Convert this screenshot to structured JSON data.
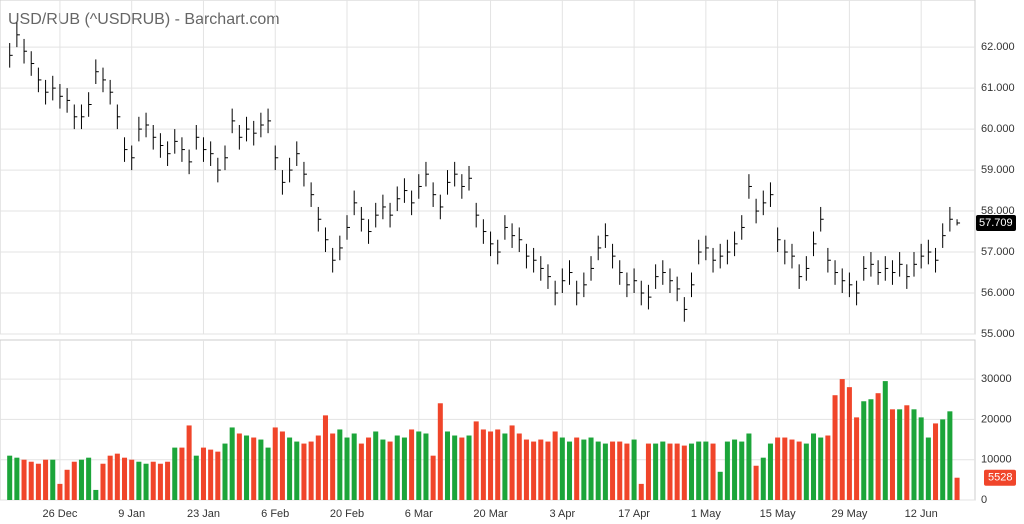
{
  "chart_data": {
    "type": "ohlc_volume",
    "title": "USD/RUB (^USDRUB) - Barchart.com",
    "grid": true,
    "up_color": "#1ca53a",
    "down_color": "#f0452a",
    "price_color": "#000000",
    "xlim": [
      -1.35,
      134.5
    ],
    "xticks": [
      {
        "value": 7,
        "label": "26 Dec"
      },
      {
        "value": 17,
        "label": "9 Jan"
      },
      {
        "value": 27,
        "label": "23 Jan"
      },
      {
        "value": 37,
        "label": "6 Feb"
      },
      {
        "value": 47,
        "label": "20 Feb"
      },
      {
        "value": 57,
        "label": "6 Mar"
      },
      {
        "value": 67,
        "label": "20 Mar"
      },
      {
        "value": 77,
        "label": "3 Apr"
      },
      {
        "value": 87,
        "label": "17 Apr"
      },
      {
        "value": 97,
        "label": "1 May"
      },
      {
        "value": 107,
        "label": "15 May"
      },
      {
        "value": 117,
        "label": "29 May"
      },
      {
        "value": 127,
        "label": "12 Jun"
      }
    ],
    "ylim": [
      55,
      63.15
    ],
    "yticks": [
      {
        "value": 55,
        "label": "55.000"
      },
      {
        "value": 56,
        "label": "56.000"
      },
      {
        "value": 57,
        "label": "57.000"
      },
      {
        "value": 58,
        "label": "58.000"
      },
      {
        "value": 59,
        "label": "59.000"
      },
      {
        "value": 60,
        "label": "60.000"
      },
      {
        "value": 61,
        "label": "61.000"
      },
      {
        "value": 62,
        "label": "62.000"
      }
    ],
    "y2lim": [
      0,
      39700
    ],
    "y2ticks": [
      0,
      10000,
      20000,
      30000
    ],
    "high": [
      62.1,
      62.6,
      62.2,
      61.9,
      61.5,
      61.2,
      61.3,
      61.1,
      61.0,
      60.6,
      60.6,
      60.9,
      61.7,
      61.5,
      61.2,
      60.6,
      59.8,
      59.6,
      60.3,
      60.4,
      60.1,
      59.9,
      59.7,
      60.0,
      59.8,
      59.5,
      60.1,
      59.8,
      59.7,
      59.3,
      59.6,
      60.5,
      60.1,
      60.3,
      60.2,
      60.4,
      60.5,
      59.6,
      59.0,
      59.3,
      59.7,
      59.2,
      58.7,
      58.1,
      57.6,
      57.1,
      57.4,
      57.9,
      58.5,
      58.1,
      57.8,
      58.2,
      58.4,
      58.2,
      58.6,
      58.8,
      58.5,
      58.9,
      59.2,
      58.7,
      58.4,
      59.0,
      59.2,
      58.9,
      59.1,
      58.2,
      57.8,
      57.5,
      57.3,
      57.9,
      57.7,
      57.6,
      57.2,
      57.1,
      56.9,
      56.7,
      56.3,
      56.6,
      56.8,
      56.3,
      56.5,
      56.9,
      57.4,
      57.7,
      57.2,
      56.8,
      56.5,
      56.6,
      56.3,
      56.2,
      56.7,
      56.8,
      56.6,
      56.4,
      55.9,
      56.5,
      57.3,
      57.4,
      57.1,
      57.2,
      57.3,
      57.5,
      57.9,
      58.9,
      58.3,
      58.5,
      58.7,
      57.6,
      57.3,
      57.2,
      56.7,
      56.9,
      57.5,
      58.1,
      57.1,
      56.8,
      56.6,
      56.5,
      56.3,
      56.9,
      57.0,
      56.8,
      56.9,
      56.8,
      57.0,
      56.7,
      57.0,
      57.2,
      57.3,
      57.1,
      57.7,
      58.1,
      57.8
    ],
    "low": [
      61.5,
      62.0,
      61.6,
      61.3,
      60.9,
      60.6,
      60.7,
      60.5,
      60.4,
      60.0,
      60.0,
      60.3,
      61.1,
      60.9,
      60.6,
      60.0,
      59.2,
      59.0,
      59.7,
      59.8,
      59.5,
      59.3,
      59.1,
      59.4,
      59.2,
      58.9,
      59.5,
      59.2,
      59.1,
      58.7,
      59.0,
      59.9,
      59.5,
      59.7,
      59.6,
      59.8,
      59.9,
      59.0,
      58.4,
      58.7,
      59.1,
      58.6,
      58.1,
      57.5,
      57.0,
      56.5,
      56.8,
      57.3,
      57.9,
      57.5,
      57.2,
      57.6,
      57.8,
      57.6,
      58.0,
      58.2,
      57.9,
      58.3,
      58.6,
      58.1,
      57.8,
      58.4,
      58.6,
      58.3,
      58.5,
      57.6,
      57.2,
      56.9,
      56.7,
      57.3,
      57.1,
      57.0,
      56.6,
      56.5,
      56.3,
      56.1,
      55.7,
      56.0,
      56.2,
      55.7,
      55.9,
      56.3,
      56.8,
      57.1,
      56.6,
      56.2,
      55.9,
      56.0,
      55.7,
      55.6,
      56.1,
      56.2,
      56.0,
      55.8,
      55.3,
      55.9,
      56.7,
      56.8,
      56.5,
      56.6,
      56.7,
      56.9,
      57.3,
      58.3,
      57.7,
      57.9,
      58.1,
      57.0,
      56.7,
      56.6,
      56.1,
      56.3,
      56.9,
      57.5,
      56.5,
      56.2,
      56.0,
      55.9,
      55.7,
      56.3,
      56.4,
      56.2,
      56.3,
      56.2,
      56.4,
      56.1,
      56.4,
      56.6,
      56.7,
      56.5,
      57.1,
      57.5,
      57.65
    ],
    "close": [
      61.8,
      62.3,
      61.9,
      61.6,
      61.2,
      60.9,
      61.0,
      60.8,
      60.7,
      60.3,
      60.3,
      60.6,
      61.4,
      61.2,
      60.9,
      60.3,
      59.5,
      59.3,
      60.0,
      60.1,
      59.8,
      59.6,
      59.4,
      59.7,
      59.5,
      59.2,
      59.8,
      59.5,
      59.4,
      59.0,
      59.3,
      60.2,
      59.8,
      60.0,
      59.9,
      60.1,
      60.2,
      59.3,
      58.7,
      59.0,
      59.4,
      58.9,
      58.4,
      57.8,
      57.3,
      56.8,
      57.1,
      57.6,
      58.2,
      57.8,
      57.5,
      57.9,
      58.1,
      57.9,
      58.3,
      58.5,
      58.2,
      58.6,
      58.9,
      58.4,
      58.1,
      58.7,
      58.9,
      58.6,
      58.8,
      57.9,
      57.5,
      57.2,
      57.0,
      57.6,
      57.4,
      57.3,
      56.9,
      56.8,
      56.6,
      56.4,
      56.0,
      56.3,
      56.5,
      56.0,
      56.2,
      56.6,
      57.1,
      57.4,
      56.9,
      56.5,
      56.2,
      56.3,
      56.0,
      55.9,
      56.4,
      56.5,
      56.3,
      56.1,
      55.6,
      56.2,
      57.0,
      57.1,
      56.8,
      56.9,
      57.0,
      57.2,
      57.6,
      58.6,
      58.0,
      58.2,
      58.4,
      57.3,
      57.0,
      56.9,
      56.4,
      56.6,
      57.2,
      57.8,
      56.8,
      56.5,
      56.3,
      56.2,
      56.0,
      56.6,
      56.7,
      56.5,
      56.6,
      56.5,
      56.7,
      56.4,
      56.7,
      56.9,
      57.0,
      56.8,
      57.4,
      57.8,
      57.709
    ],
    "volume": [
      11000,
      10500,
      10000,
      9500,
      9000,
      10000,
      10000,
      4000,
      7500,
      9500,
      10000,
      10500,
      2500,
      9000,
      11000,
      11500,
      10500,
      10000,
      9500,
      9000,
      9500,
      9000,
      9500,
      13000,
      13000,
      18500,
      11000,
      13000,
      12500,
      12000,
      14000,
      18000,
      16500,
      16000,
      15500,
      15000,
      13000,
      18000,
      17000,
      15500,
      14500,
      14000,
      14500,
      16000,
      21000,
      16500,
      17500,
      15500,
      16500,
      14000,
      15500,
      17000,
      15000,
      14500,
      16000,
      15500,
      17500,
      17000,
      16500,
      11000,
      24000,
      17000,
      16000,
      15500,
      16000,
      19500,
      17500,
      17000,
      17500,
      16500,
      18500,
      16500,
      15000,
      14500,
      15000,
      14500,
      17000,
      15500,
      14500,
      15500,
      15000,
      15500,
      14500,
      14000,
      14500,
      14500,
      14000,
      15000,
      4000,
      14000,
      14000,
      14500,
      14000,
      14000,
      13500,
      14000,
      14500,
      14500,
      14000,
      7000,
      14500,
      15000,
      14500,
      16500,
      8500,
      10500,
      14000,
      15500,
      15500,
      15000,
      14500,
      14000,
      16500,
      15500,
      16000,
      26000,
      30000,
      28000,
      20500,
      24500,
      25000,
      26500,
      29500,
      22500,
      22500,
      23500,
      22500,
      20500,
      15500,
      19000,
      20000,
      22000,
      5528
    ]
  }
}
